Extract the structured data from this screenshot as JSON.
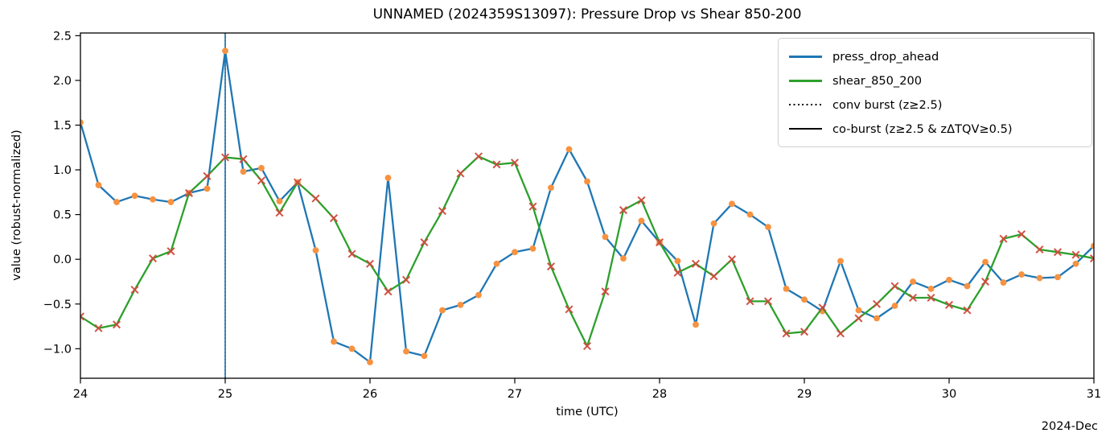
{
  "chart_data": {
    "type": "line",
    "title": "UNNAMED (2024359S13097): Pressure Drop vs Shear 850-200",
    "xlabel": "time (UTC)",
    "xlabel_secondary": "2024-Dec",
    "ylabel": "value (robust-normalized)",
    "xlim": [
      24,
      31
    ],
    "ylim": [
      -1.33,
      2.53
    ],
    "xticks": [
      24,
      25,
      26,
      27,
      28,
      29,
      30,
      31
    ],
    "yticks": [
      2.5,
      2.0,
      1.5,
      1.0,
      0.5,
      0.0,
      -0.5,
      -1.0
    ],
    "grid": false,
    "legend_position": "upper right",
    "legend": [
      "press_drop_ahead",
      "shear_850_200",
      "conv burst (z≥2.5)",
      "co-burst (z≥2.5 & zΔTQV≥0.5)"
    ],
    "x": [
      24,
      24.125,
      24.25,
      24.375,
      24.5,
      24.625,
      24.75,
      24.875,
      25,
      25.125,
      25.25,
      25.375,
      25.5,
      25.625,
      25.75,
      25.875,
      26,
      26.125,
      26.25,
      26.375,
      26.5,
      26.625,
      26.75,
      26.875,
      27,
      27.125,
      27.25,
      27.375,
      27.5,
      27.625,
      27.75,
      27.875,
      28,
      28.125,
      28.25,
      28.375,
      28.5,
      28.625,
      28.75,
      28.875,
      29,
      29.125,
      29.25,
      29.375,
      29.5,
      29.625,
      29.75,
      29.875,
      30,
      30.125,
      30.25,
      30.375,
      30.5,
      30.625,
      30.75,
      30.875,
      31
    ],
    "series": [
      {
        "name": "press_drop_ahead",
        "color": "#1f77b4",
        "marker": "circle",
        "marker_color": "#f79240",
        "values": [
          1.53,
          0.83,
          0.64,
          0.71,
          0.67,
          0.64,
          0.74,
          0.79,
          2.33,
          0.98,
          1.02,
          0.65,
          0.86,
          0.1,
          -0.92,
          -1.0,
          -1.15,
          0.91,
          -1.03,
          -1.08,
          -0.57,
          -0.51,
          -0.4,
          -0.05,
          0.08,
          0.12,
          0.8,
          1.23,
          0.87,
          0.25,
          0.01,
          0.43,
          0.19,
          -0.02,
          -0.73,
          0.4,
          0.62,
          0.5,
          0.36,
          -0.33,
          -0.45,
          -0.58,
          -0.02,
          -0.57,
          -0.66,
          -0.52,
          -0.25,
          -0.33,
          -0.23,
          -0.3,
          -0.03,
          -0.26,
          -0.17,
          -0.21,
          -0.2,
          -0.05,
          0.15
        ]
      },
      {
        "name": "shear_850_200",
        "color": "#2ca02c",
        "marker": "x",
        "marker_color": "#d04a3c",
        "values": [
          -0.64,
          -0.77,
          -0.73,
          -0.34,
          0.01,
          0.09,
          0.74,
          0.93,
          1.14,
          1.12,
          0.88,
          0.52,
          0.86,
          0.68,
          0.46,
          0.06,
          -0.05,
          -0.36,
          -0.23,
          0.19,
          0.54,
          0.96,
          1.15,
          1.06,
          1.08,
          0.59,
          -0.08,
          -0.56,
          -0.97,
          -0.36,
          0.55,
          0.66,
          0.19,
          -0.15,
          -0.05,
          -0.19,
          0.0,
          -0.47,
          -0.47,
          -0.83,
          -0.81,
          -0.54,
          -0.83,
          -0.66,
          -0.5,
          -0.3,
          -0.43,
          -0.43,
          -0.51,
          -0.57,
          -0.25,
          0.23,
          0.28,
          0.11,
          0.08,
          0.05,
          0.01
        ]
      }
    ],
    "event_lines": [
      {
        "x": 25.0,
        "solid_color": "#1f77b4",
        "overlay_style": "dotted-black"
      }
    ]
  }
}
